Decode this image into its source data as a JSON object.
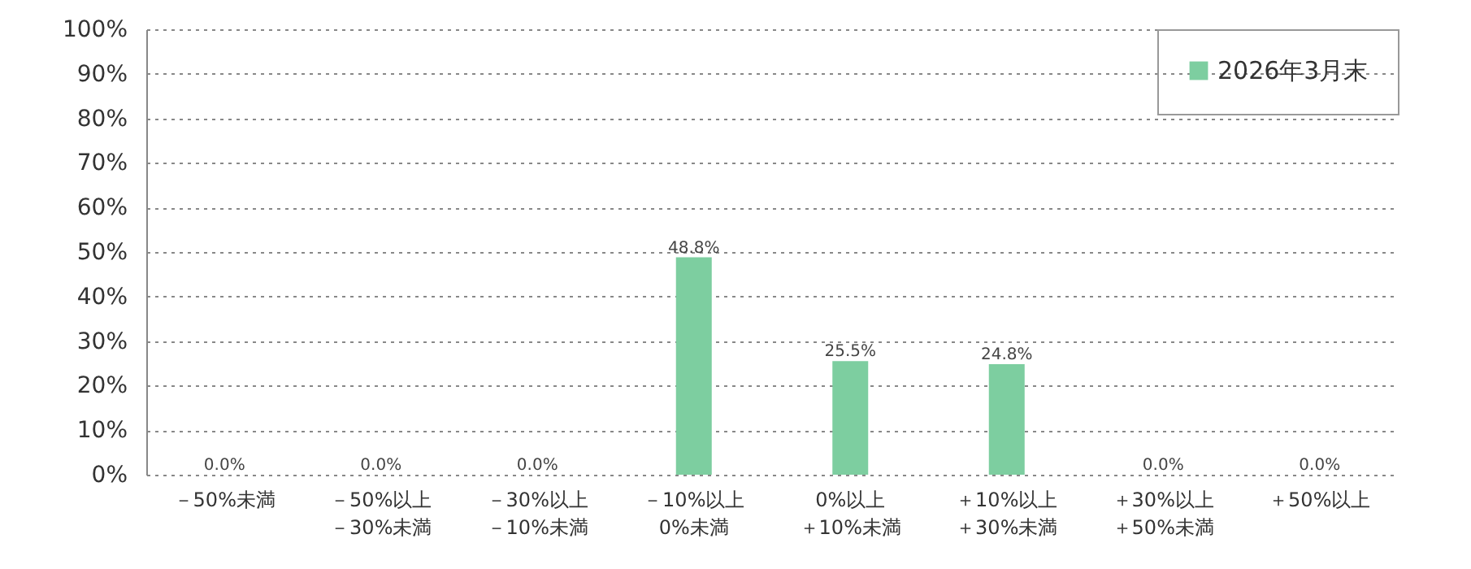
{
  "chart_data": {
    "type": "bar",
    "categories": [
      "－50%未満",
      "－50%以上－30%未満",
      "－30%以上－10%未満",
      "－10%以上0%未満",
      "0%以上＋10%未満",
      "＋10%以上＋30%未満",
      "＋30%以上＋50%未満",
      "＋50%以上"
    ],
    "series": [
      {
        "name": "2026年3月末",
        "color": "#7dcea0",
        "values": [
          0,
          0,
          0,
          48.8,
          25.5,
          24.8,
          0,
          0
        ],
        "value_labels": [
          "0.0%",
          "0.0%",
          "0.0%",
          "48.8%",
          "25.5%",
          "24.8%",
          "0.0%",
          "0.0%"
        ]
      }
    ],
    "ylim": [
      0,
      100
    ],
    "yticks": [
      {
        "value": 0,
        "label": "0%"
      },
      {
        "value": 10,
        "label": "10%"
      },
      {
        "value": 20,
        "label": "20%"
      },
      {
        "value": 30,
        "label": "30%"
      },
      {
        "value": 40,
        "label": "40%"
      },
      {
        "value": 50,
        "label": "50%"
      },
      {
        "value": 60,
        "label": "60%"
      },
      {
        "value": 70,
        "label": "70%"
      },
      {
        "value": 80,
        "label": "80%"
      },
      {
        "value": 90,
        "label": "90%"
      },
      {
        "value": 100,
        "label": "100%"
      }
    ],
    "grid": "y",
    "legend": "top right"
  }
}
